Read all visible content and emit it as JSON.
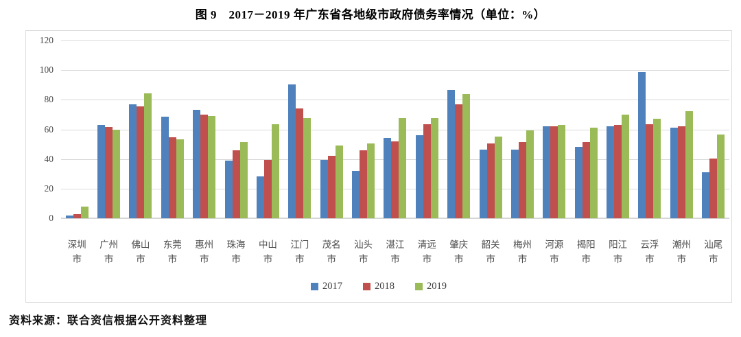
{
  "page": {
    "title": "图 9　2017－2019 年广东省各地级市政府债务率情况（单位：%）",
    "source": "资料来源：联合资信根据公开资料整理"
  },
  "chart_data": {
    "type": "bar",
    "title": "图 9　2017－2019 年广东省各地级市政府债务率情况（单位：%）",
    "source": "资料来源：联合资信根据公开资料整理",
    "categories": [
      "深圳市",
      "广州市",
      "佛山市",
      "东莞市",
      "惠州市",
      "珠海市",
      "中山市",
      "江门市",
      "茂名市",
      "汕头市",
      "湛江市",
      "清远市",
      "肇庆市",
      "韶关市",
      "梅州市",
      "河源市",
      "揭阳市",
      "阳江市",
      "云浮市",
      "潮州市",
      "汕尾市"
    ],
    "series": [
      {
        "name": "2017",
        "color": "#4F81BD",
        "values": [
          2,
          63,
          77,
          68.5,
          73,
          39,
          28.5,
          90.5,
          39.5,
          32,
          54,
          56,
          86.5,
          46.5,
          46.5,
          62,
          48,
          62,
          98.5,
          61,
          31
        ]
      },
      {
        "name": "2018",
        "color": "#C0504D",
        "values": [
          3,
          61.5,
          75.5,
          54.5,
          70,
          46,
          39.5,
          74,
          42,
          46,
          52,
          63.5,
          77,
          50.5,
          51.5,
          62,
          51.5,
          63,
          63.5,
          62,
          40.5
        ]
      },
      {
        "name": "2019",
        "color": "#9BBB59",
        "values": [
          8,
          60,
          84.5,
          53.5,
          69,
          51.5,
          63.5,
          67.5,
          49,
          50.5,
          67.5,
          67.5,
          84,
          55,
          59.5,
          63,
          61,
          70,
          67,
          72.5,
          56.5
        ]
      }
    ],
    "xlabel": "",
    "ylabel": "",
    "unit": "%",
    "ylim": [
      0,
      120
    ],
    "yticks": [
      0,
      20,
      40,
      60,
      80,
      100,
      120
    ],
    "grid": true,
    "legend_position": "bottom"
  }
}
